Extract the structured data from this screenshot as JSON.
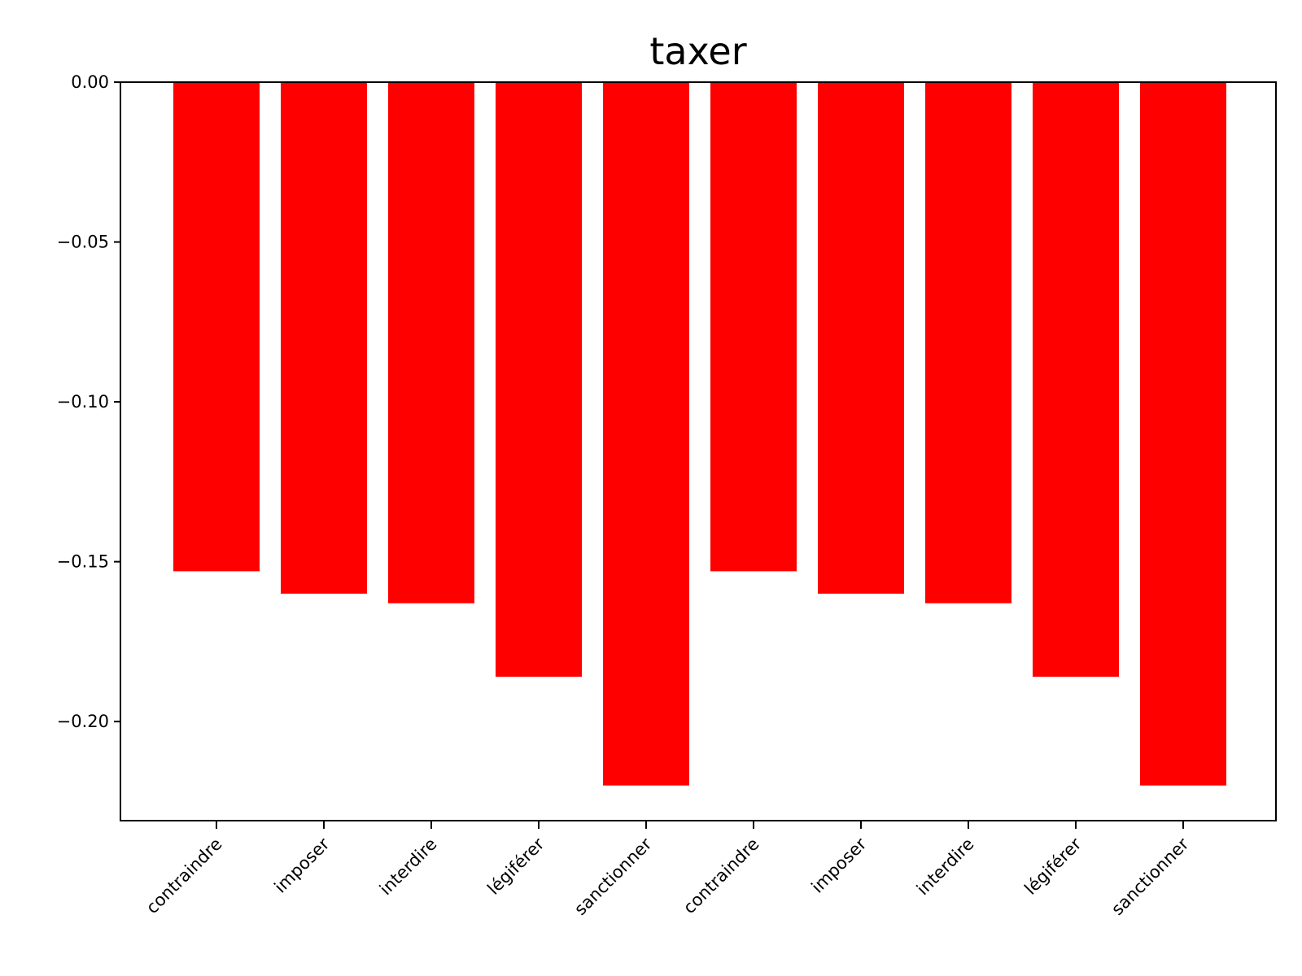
{
  "chart_data": {
    "type": "bar",
    "title": "taxer",
    "xlabel": "",
    "ylabel": "",
    "categories": [
      "contraindre",
      "imposer",
      "interdire",
      "légiférer",
      "sanctionner",
      "contraindre",
      "imposer",
      "interdire",
      "légiférer",
      "sanctionner"
    ],
    "values": [
      -0.153,
      -0.16,
      -0.163,
      -0.186,
      -0.22,
      -0.153,
      -0.16,
      -0.163,
      -0.186,
      -0.22
    ],
    "ylim": [
      -0.231,
      0.0
    ],
    "yticks": [
      0.0,
      -0.05,
      -0.1,
      -0.15,
      -0.2
    ],
    "ytick_labels": [
      "0.00",
      "−0.05",
      "−0.10",
      "−0.15",
      "−0.20"
    ],
    "bar_color": "#ff0000",
    "grid": false,
    "legend": "none"
  }
}
